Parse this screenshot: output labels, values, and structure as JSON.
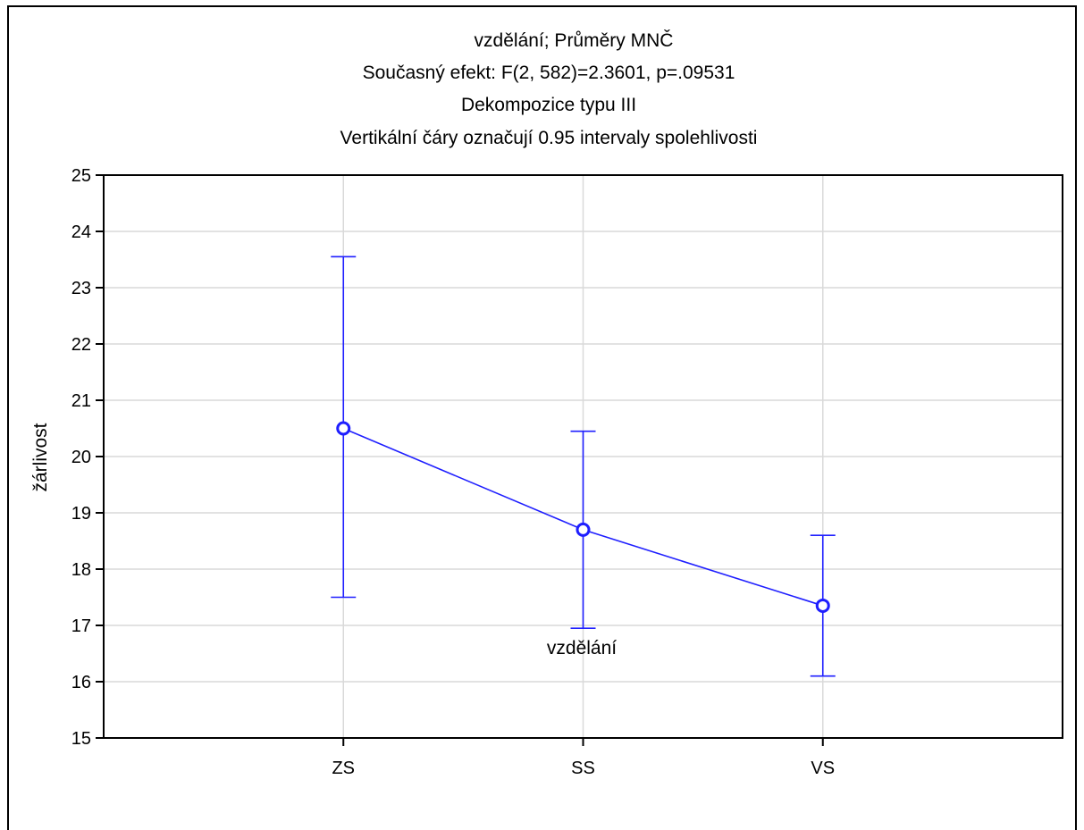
{
  "chart_data": {
    "type": "line",
    "title_lines": [
      "vzdělání; Průměry MNČ",
      "Současný efekt: F(2, 582)=2.3601, p=.09531",
      "Dekompozice typu III",
      "Vertikální čáry označují 0.95 intervaly spolehlivosti"
    ],
    "xlabel": "vzdělání",
    "ylabel": "žárlivost",
    "categories": [
      "ZS",
      "SS",
      "VS"
    ],
    "series": [
      {
        "values": [
          20.5,
          18.7,
          17.35
        ],
        "ci_lower": [
          17.5,
          16.95,
          16.1
        ],
        "ci_upper": [
          23.55,
          20.45,
          18.6
        ]
      }
    ],
    "ylim": [
      15,
      25
    ],
    "yticks": [
      15,
      16,
      17,
      18,
      19,
      20,
      21,
      22,
      23,
      24,
      25
    ],
    "grid": true,
    "colors": {
      "series": "#1f1fff",
      "grid": "#d9d9d9",
      "axis": "#000000"
    }
  }
}
